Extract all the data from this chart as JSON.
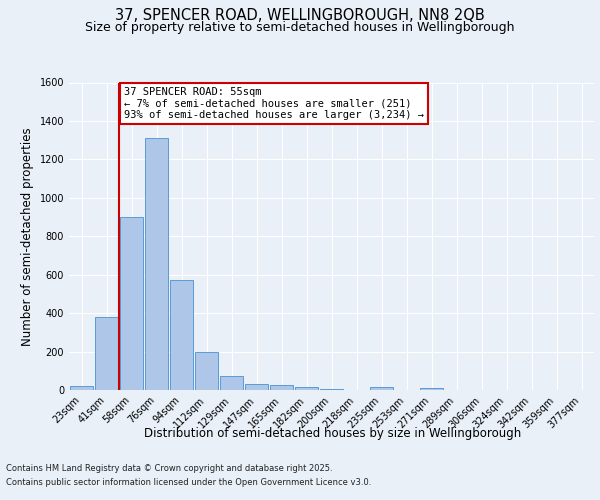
{
  "title": "37, SPENCER ROAD, WELLINGBOROUGH, NN8 2QB",
  "subtitle": "Size of property relative to semi-detached houses in Wellingborough",
  "xlabel": "Distribution of semi-detached houses by size in Wellingborough",
  "ylabel": "Number of semi-detached properties",
  "footnote1": "Contains HM Land Registry data © Crown copyright and database right 2025.",
  "footnote2": "Contains public sector information licensed under the Open Government Licence v3.0.",
  "bin_labels": [
    "23sqm",
    "41sqm",
    "58sqm",
    "76sqm",
    "94sqm",
    "112sqm",
    "129sqm",
    "147sqm",
    "165sqm",
    "182sqm",
    "200sqm",
    "218sqm",
    "235sqm",
    "253sqm",
    "271sqm",
    "289sqm",
    "306sqm",
    "324sqm",
    "342sqm",
    "359sqm",
    "377sqm"
  ],
  "bar_values": [
    20,
    380,
    900,
    1310,
    570,
    200,
    75,
    30,
    25,
    15,
    5,
    0,
    15,
    0,
    10,
    0,
    0,
    0,
    0,
    0,
    0
  ],
  "bar_color": "#aec6e8",
  "bar_edge_color": "#5b9bd5",
  "red_line_x": 1.5,
  "annotation_title": "37 SPENCER ROAD: 55sqm",
  "annotation_line1": "← 7% of semi-detached houses are smaller (251)",
  "annotation_line2": "93% of semi-detached houses are larger (3,234) →",
  "ylim": [
    0,
    1600
  ],
  "yticks": [
    0,
    200,
    400,
    600,
    800,
    1000,
    1200,
    1400,
    1600
  ],
  "bg_color": "#eaf0f8",
  "plot_bg_color": "#eaf0f8",
  "annotation_box_color": "#ffffff",
  "annotation_box_edge": "#cc0000",
  "title_fontsize": 10.5,
  "subtitle_fontsize": 9,
  "axis_label_fontsize": 8.5,
  "tick_fontsize": 7,
  "annotation_fontsize": 7.5,
  "footnote_fontsize": 6
}
